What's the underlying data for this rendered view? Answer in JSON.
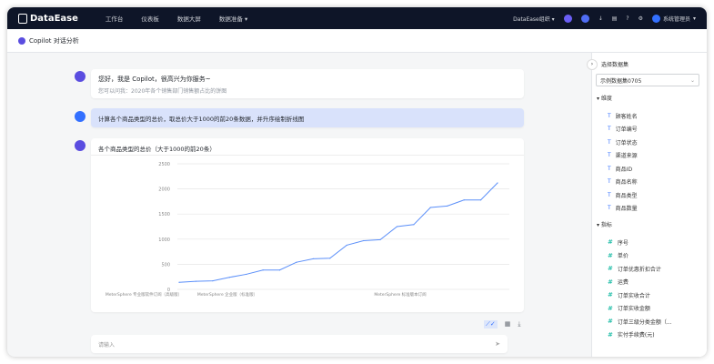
{
  "nav": {
    "brand": "DataEase",
    "items": [
      "工作台",
      "仪表板",
      "数据大屏",
      "数据准备"
    ],
    "org": "DataEase组织",
    "user": "系统管理员"
  },
  "subheader": {
    "title": "Copilot 对话分析"
  },
  "chat": {
    "greeting": "您好，我是 Copilot，很高兴为你服务~",
    "hint": "您可以问我：2020年各个销售部门销售额占比的饼图",
    "user_message": "计算各个商品类型的总价，取总价大于1000的前20条数据，并升序绘制折线图",
    "answer_title": "各个商品类型的总价（大于1000的前20条）",
    "input_placeholder": "请输入"
  },
  "chart_data": {
    "type": "line",
    "title": "各个商品类型的总价（大于1000的前20条）",
    "yticks": [
      "0",
      "500",
      "1000",
      "1500",
      "2000",
      "2500"
    ],
    "ylim": [
      0,
      2500
    ],
    "grid": true,
    "color": "#5b8ff9",
    "category_labels_shown": [
      "MeterSphere 专业版软件订阅（高级版）",
      "MeterSphere 企业版（标准版）",
      "MeterSphere 标准版本订阅"
    ],
    "values": [
      140,
      160,
      170,
      240,
      300,
      385,
      385,
      540,
      610,
      620,
      880,
      970,
      990,
      1250,
      1290,
      1630,
      1660,
      1780,
      1780,
      2120
    ]
  },
  "panel": {
    "title": "选择数据集",
    "dataset": "示例数据集0705",
    "dim_label": "维度",
    "measure_label": "指标",
    "dimensions": [
      "顾客姓名",
      "订单编号",
      "订单状态",
      "渠道来源",
      "商品ID",
      "商品名称",
      "商品类型",
      "商品数量"
    ],
    "measures": [
      "序号",
      "单价",
      "订单优惠折扣合计",
      "运费",
      "订单实收合计",
      "订单实收金额",
      "订单三级分类金额（...",
      "实付手续费(元)"
    ]
  }
}
